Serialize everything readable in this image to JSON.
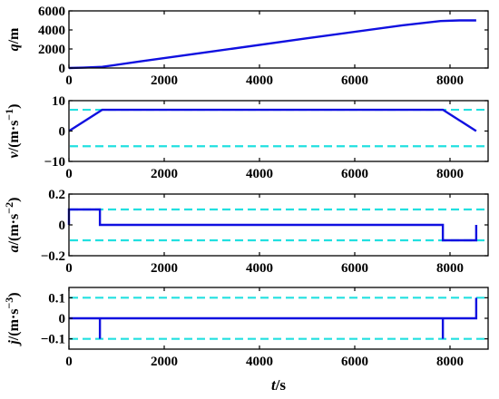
{
  "colors": {
    "series": "#1010e0",
    "limit": "#22e0e0",
    "axis": "#000000",
    "background": "#ffffff"
  },
  "chart_data": [
    {
      "type": "line",
      "ylabel": {
        "prefix": "q",
        "unit": "/m",
        "exp": ""
      },
      "xlim": [
        0,
        8800
      ],
      "ylim": [
        0,
        6000
      ],
      "xticks": [
        0,
        2000,
        4000,
        6000,
        8000
      ],
      "yticks": [
        0,
        2000,
        4000,
        6000
      ],
      "ytick_labels": [
        "0",
        "2000",
        "4000",
        "6000"
      ],
      "series": [
        {
          "style": "solid",
          "x": [
            0,
            300,
            700,
            1500,
            3000,
            5000,
            7000,
            7800,
            8200,
            8550
          ],
          "y": [
            0,
            40,
            120,
            700,
            1730,
            3120,
            4480,
            4930,
            5000,
            5000
          ]
        }
      ],
      "limits": []
    },
    {
      "type": "line",
      "ylabel": {
        "prefix": "v",
        "unit": "/(m·s",
        "exp": "−1"
      },
      "xlim": [
        0,
        8800
      ],
      "ylim": [
        -10,
        10
      ],
      "xticks": [
        0,
        2000,
        4000,
        6000,
        8000
      ],
      "yticks": [
        -10,
        0,
        10
      ],
      "ytick_labels": [
        "−10",
        "0",
        "10"
      ],
      "series": [
        {
          "style": "solid",
          "x": [
            0,
            700,
            7850,
            8550
          ],
          "y": [
            0,
            7,
            7,
            0
          ]
        }
      ],
      "limits": [
        7,
        -5
      ]
    },
    {
      "type": "line",
      "ylabel": {
        "prefix": "a",
        "unit": "/(m·s",
        "exp": "−2"
      },
      "xlim": [
        0,
        8800
      ],
      "ylim": [
        -0.2,
        0.2
      ],
      "xticks": [
        0,
        2000,
        4000,
        6000,
        8000
      ],
      "yticks": [
        -0.2,
        0,
        0.2
      ],
      "ytick_labels": [
        "−0.2",
        "0",
        "0.2"
      ],
      "series": [
        {
          "style": "solid",
          "x": [
            0,
            0,
            650,
            650,
            7850,
            7850,
            8550,
            8550
          ],
          "y": [
            0,
            0.1,
            0.1,
            0,
            0,
            -0.1,
            -0.1,
            0
          ]
        }
      ],
      "limits": [
        0.1,
        -0.1
      ]
    },
    {
      "type": "line",
      "ylabel": {
        "prefix": "j",
        "unit": "/(m·s",
        "exp": "−3"
      },
      "xlim": [
        0,
        8800
      ],
      "ylim": [
        -0.15,
        0.15
      ],
      "xticks": [
        0,
        2000,
        4000,
        6000,
        8000
      ],
      "yticks": [
        -0.1,
        0,
        0.1
      ],
      "ytick_labels": [
        "−0.1",
        "0",
        "0.1"
      ],
      "xlabel": {
        "prefix": "t",
        "unit": "/s"
      },
      "series": [
        {
          "style": "solid",
          "x": [
            0,
            0,
            650,
            650,
            650,
            7850,
            7850,
            7850,
            8550,
            8550
          ],
          "y": [
            0,
            0,
            0,
            -0.1,
            0,
            0,
            -0.1,
            0,
            0,
            0.1
          ]
        }
      ],
      "limits": [
        0.1,
        -0.1
      ]
    }
  ]
}
